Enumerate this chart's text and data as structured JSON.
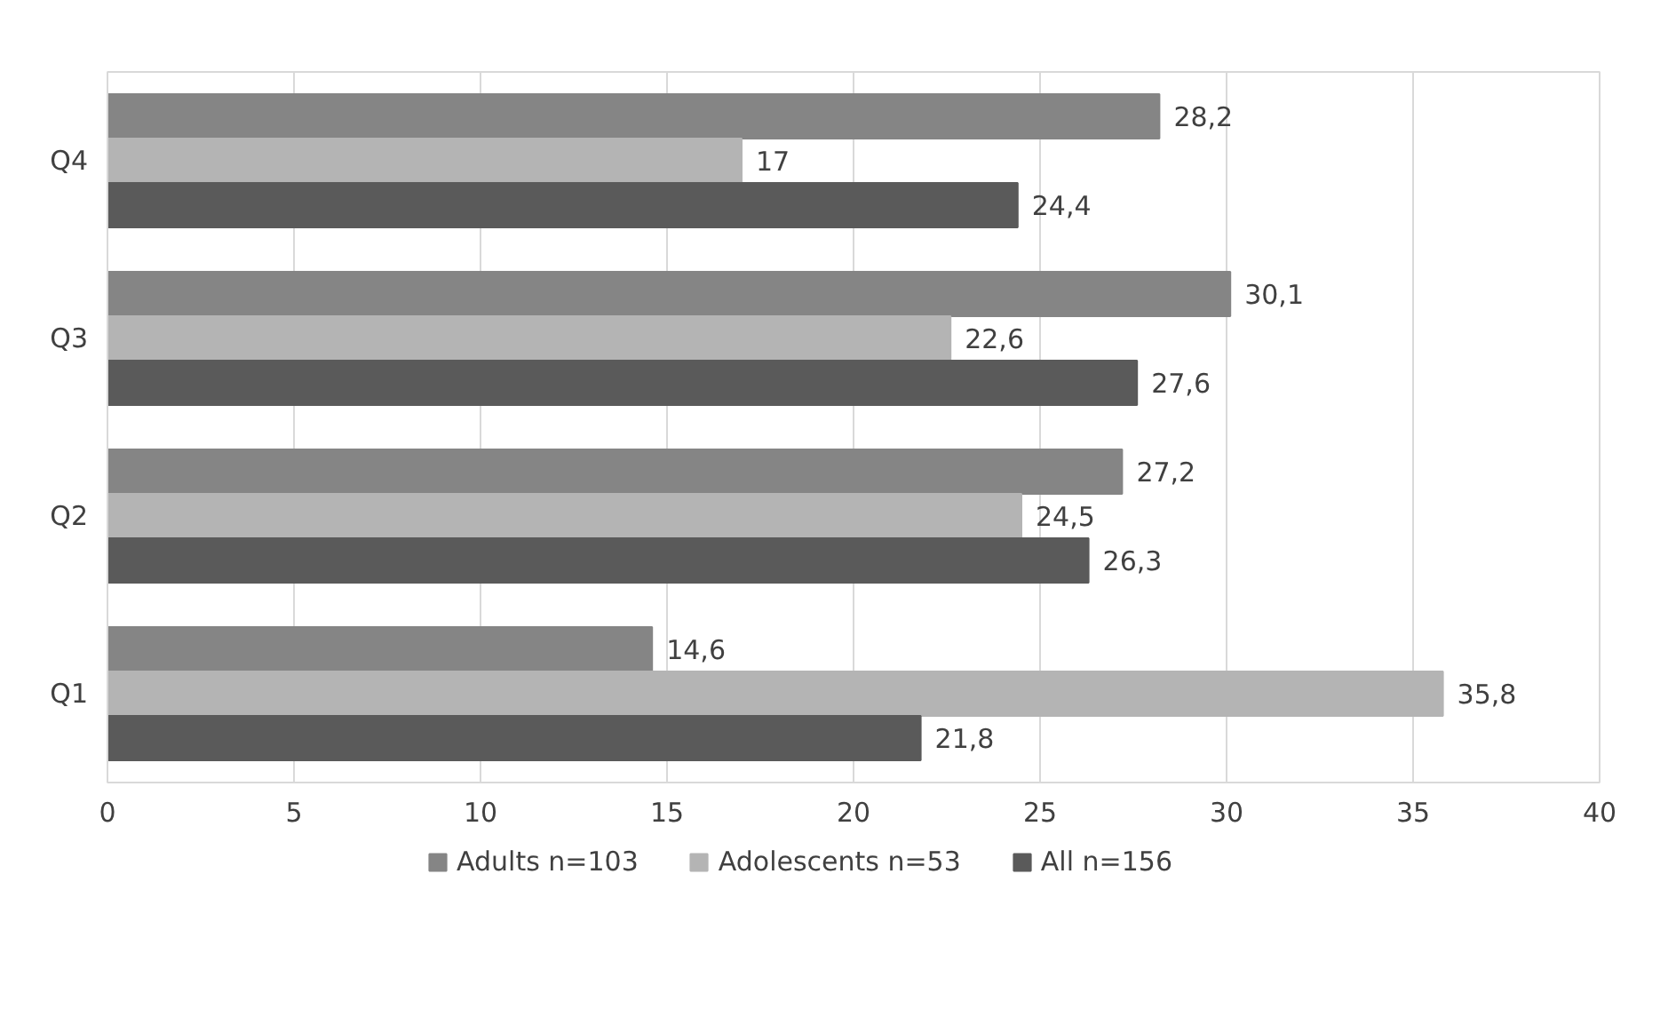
{
  "chart_data": {
    "type": "bar",
    "orientation": "horizontal",
    "categories": [
      "Q4",
      "Q3",
      "Q2",
      "Q1"
    ],
    "series": [
      {
        "name": "Adults n=103",
        "color": "#858585",
        "values": [
          28.2,
          30.1,
          27.2,
          14.6
        ],
        "value_labels": [
          "28,2",
          "30,1",
          "27,2",
          "14,6"
        ]
      },
      {
        "name": "Adolescents n=53",
        "color": "#b4b4b4",
        "values": [
          17,
          22.6,
          24.5,
          35.8
        ],
        "value_labels": [
          "17",
          "22,6",
          "24,5",
          "35,8"
        ]
      },
      {
        "name": "All n=156",
        "color": "#5a5a5a",
        "values": [
          24.4,
          27.6,
          26.3,
          21.8
        ],
        "value_labels": [
          "24,4",
          "27,6",
          "26,3",
          "21,8"
        ]
      }
    ],
    "xlim": [
      0,
      40
    ],
    "xticks": [
      0,
      5,
      10,
      15,
      20,
      25,
      30,
      35,
      40
    ],
    "grid": "x",
    "legend": "bottom"
  }
}
